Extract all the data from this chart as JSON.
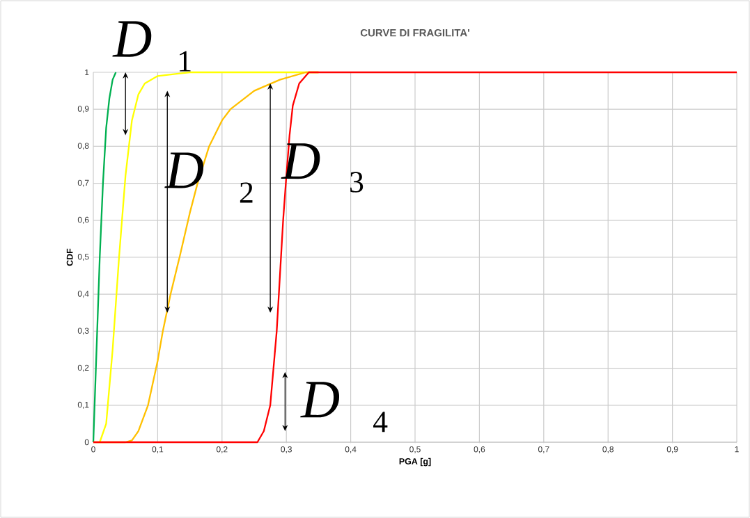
{
  "chart_data": {
    "type": "line",
    "title": "CURVE DI FRAGILITA'",
    "xlabel": "PGA [g]",
    "ylabel": "CDF",
    "xlim": [
      0,
      1
    ],
    "ylim": [
      0,
      1
    ],
    "grid": true,
    "xticks": [
      0,
      {
        "value": 0.1,
        "label": "0,1"
      },
      {
        "value": 0.2,
        "label": "0,2"
      },
      {
        "value": 0.3,
        "label": "0,3"
      },
      {
        "value": 0.4,
        "label": "0,4"
      },
      {
        "value": 0.5,
        "label": "0,5"
      },
      {
        "value": 0.6,
        "label": "0,6"
      },
      {
        "value": 0.7,
        "label": "0,7"
      },
      {
        "value": 0.8,
        "label": "0,8"
      },
      {
        "value": 0.9,
        "label": "0,9"
      },
      1
    ],
    "yticks": [
      0,
      {
        "value": 0.1,
        "label": "0,1"
      },
      {
        "value": 0.2,
        "label": "0,2"
      },
      {
        "value": 0.3,
        "label": "0,3"
      },
      {
        "value": 0.4,
        "label": "0,4"
      },
      {
        "value": 0.5,
        "label": "0,5"
      },
      {
        "value": 0.6,
        "label": "0,6"
      },
      {
        "value": 0.7,
        "label": "0,7"
      },
      {
        "value": 0.8,
        "label": "0,8"
      },
      {
        "value": 0.9,
        "label": "0,9"
      },
      1
    ],
    "series": [
      {
        "color": "#00b050",
        "x": [
          0,
          0.005,
          0.01,
          0.015,
          0.02,
          0.025,
          0.03,
          0.035
        ],
        "values": [
          0,
          0.25,
          0.5,
          0.7,
          0.85,
          0.93,
          0.98,
          1
        ]
      },
      {
        "color": "#ffff00",
        "x": [
          0.01,
          0.02,
          0.03,
          0.04,
          0.05,
          0.06,
          0.07,
          0.08,
          0.1,
          0.15,
          0.35
        ],
        "values": [
          0,
          0.05,
          0.25,
          0.5,
          0.72,
          0.87,
          0.94,
          0.97,
          0.99,
          1,
          1
        ]
      },
      {
        "color": "#ffc000",
        "x": [
          0,
          0.05,
          0.06,
          0.07,
          0.085,
          0.1,
          0.108,
          0.12,
          0.134,
          0.15,
          0.162,
          0.18,
          0.2,
          0.213,
          0.25,
          0.29,
          0.33,
          0.35
        ],
        "values": [
          0,
          0,
          0.005,
          0.03,
          0.1,
          0.22,
          0.3,
          0.4,
          0.5,
          0.62,
          0.7,
          0.8,
          0.87,
          0.9,
          0.95,
          0.98,
          1,
          1
        ]
      },
      {
        "color": "#ff0000",
        "x": [
          0,
          0.255,
          0.265,
          0.275,
          0.285,
          0.29,
          0.295,
          0.3,
          0.305,
          0.31,
          0.32,
          0.335,
          1
        ],
        "values": [
          0,
          0,
          0.03,
          0.1,
          0.3,
          0.45,
          0.6,
          0.72,
          0.83,
          0.91,
          0.97,
          1,
          1
        ]
      }
    ],
    "annotations": [
      "D",
      "1",
      "D",
      "2",
      "D",
      "3",
      "D",
      "4"
    ]
  }
}
